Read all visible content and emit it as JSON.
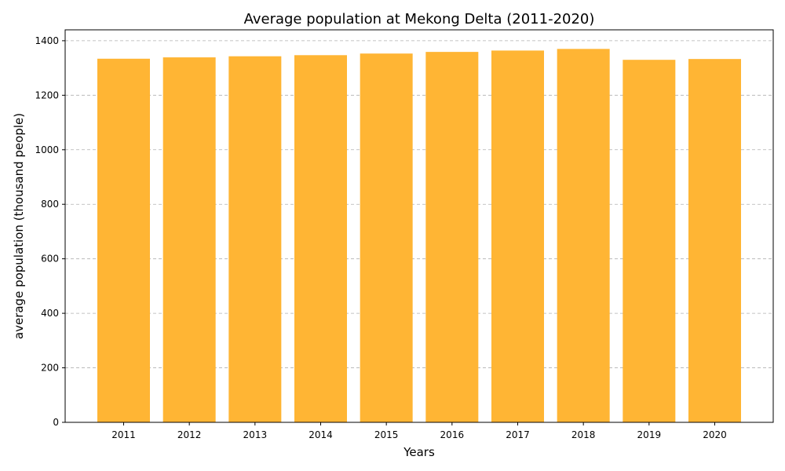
{
  "chart_data": {
    "type": "bar",
    "title": "Average population at Mekong Delta (2011-2020)",
    "xlabel": "Years",
    "ylabel": "average population (thousand people)",
    "categories": [
      "2011",
      "2012",
      "2013",
      "2014",
      "2015",
      "2016",
      "2017",
      "2018",
      "2019",
      "2020"
    ],
    "values": [
      1334,
      1339,
      1343,
      1347,
      1353,
      1359,
      1364,
      1370,
      1330,
      1333
    ],
    "ylim": [
      0,
      1440
    ],
    "yticks": [
      0,
      200,
      400,
      600,
      800,
      1000,
      1200,
      1400
    ],
    "grid": "y-dashed",
    "bar_color": "#FFB534"
  }
}
